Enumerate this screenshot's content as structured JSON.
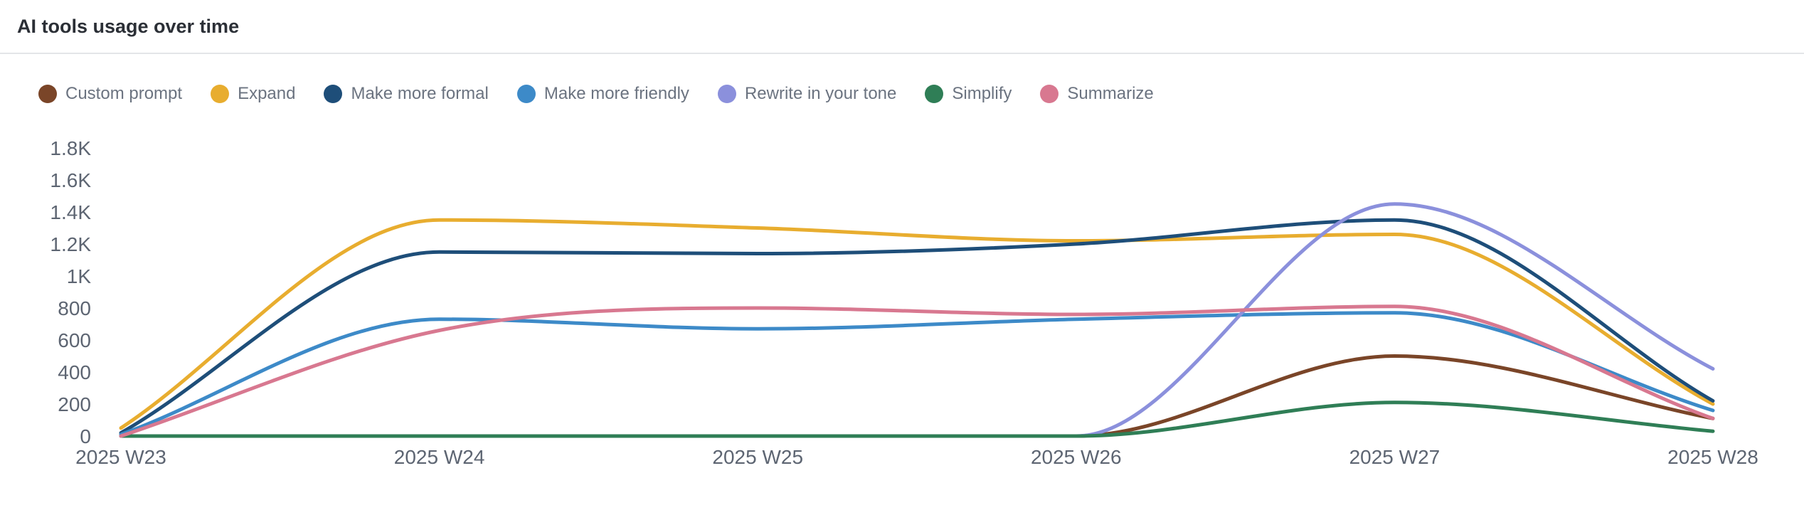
{
  "header": {
    "title": "AI tools usage over time"
  },
  "chart_data": {
    "type": "line",
    "title": "AI tools usage over time",
    "xlabel": "",
    "ylabel": "",
    "x": [
      "2025 W23",
      "2025 W24",
      "2025 W25",
      "2025 W26",
      "2025 W27",
      "2025 W28"
    ],
    "ylim": [
      0,
      1800
    ],
    "y_ticks": [
      0,
      200,
      400,
      600,
      800,
      1000,
      1200,
      1400,
      1600,
      1800
    ],
    "y_tick_labels": [
      "0",
      "200",
      "400",
      "600",
      "800",
      "1K",
      "1.2K",
      "1.4K",
      "1.6K",
      "1.8K"
    ],
    "legend_position": "top-left",
    "grid": false,
    "series": [
      {
        "name": "Custom prompt",
        "color": "#7a4528",
        "values": [
          0,
          0,
          0,
          0,
          500,
          110
        ]
      },
      {
        "name": "Expand",
        "color": "#e8ad2f",
        "values": [
          50,
          1350,
          1300,
          1220,
          1260,
          200
        ]
      },
      {
        "name": "Make more formal",
        "color": "#1e4e79",
        "values": [
          20,
          1150,
          1140,
          1200,
          1350,
          220
        ]
      },
      {
        "name": "Make more friendly",
        "color": "#3d8ac8",
        "values": [
          10,
          730,
          670,
          730,
          770,
          160
        ]
      },
      {
        "name": "Rewrite in your tone",
        "color": "#8b90dc",
        "values": [
          0,
          0,
          0,
          0,
          1450,
          420
        ]
      },
      {
        "name": "Simplify",
        "color": "#2f7e56",
        "values": [
          0,
          0,
          0,
          0,
          210,
          30
        ]
      },
      {
        "name": "Summarize",
        "color": "#d87890",
        "values": [
          0,
          660,
          800,
          760,
          810,
          110
        ]
      }
    ]
  }
}
